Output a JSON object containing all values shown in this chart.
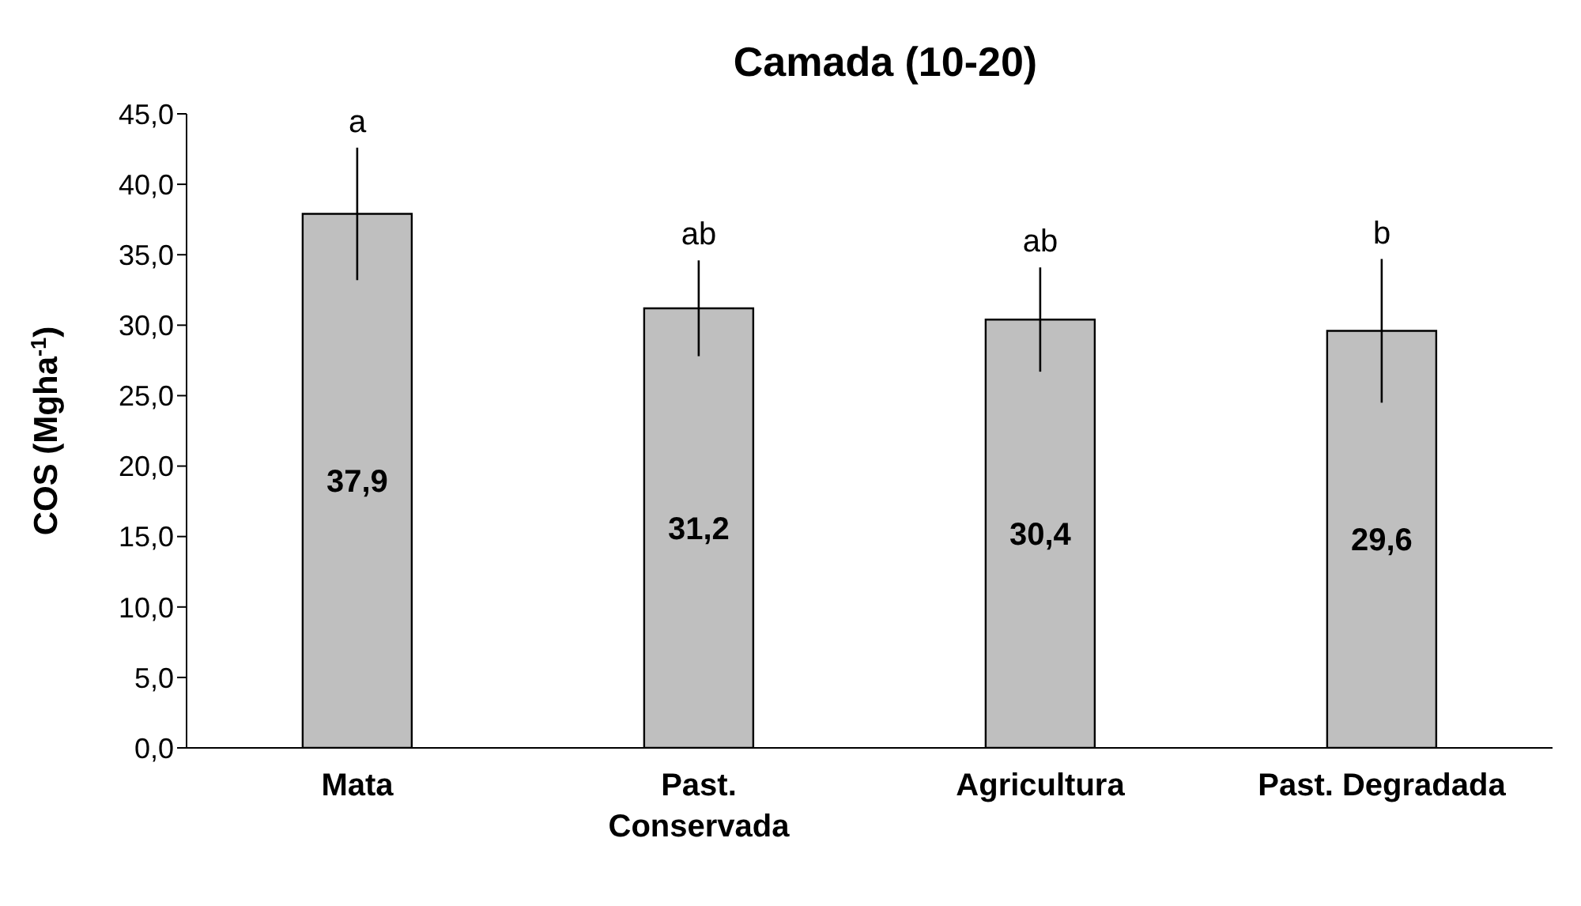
{
  "chart_data": {
    "type": "bar",
    "title": "Camada (10-20)",
    "ylabel": "COS (Mgha$^{-1}$)",
    "categories": [
      "Mata",
      "Past. Conservada",
      "Agricultura",
      "Past. Degradada"
    ],
    "values": [
      37.9,
      31.2,
      30.4,
      29.6
    ],
    "color": "#bfbfbf",
    "errors": [
      4.7,
      3.4,
      3.7,
      5.1
    ],
    "value_labels": [
      "37,9",
      "31,2",
      "30,4",
      "29,6"
    ],
    "annotations": [
      {
        "text": "a",
        "x": "Mata",
        "y": 42.6
      },
      {
        "text": "ab",
        "x": "Past. Conservada",
        "y": 34.6
      },
      {
        "text": "ab",
        "x": "Agricultura",
        "y": 34.1
      },
      {
        "text": "b",
        "x": "Past. Degradada",
        "y": 34.7
      }
    ],
    "ylim": [
      0,
      45
    ],
    "yticks": [
      {
        "value": 0,
        "label": "0,0"
      },
      {
        "value": 5,
        "label": "5,0"
      },
      {
        "value": 10,
        "label": "10,0"
      },
      {
        "value": 15,
        "label": "15,0"
      },
      {
        "value": 20,
        "label": "20,0"
      },
      {
        "value": 25,
        "label": "25,0"
      },
      {
        "value": 30,
        "label": "30,0"
      },
      {
        "value": 35,
        "label": "35,0"
      },
      {
        "value": 40,
        "label": "40,0"
      },
      {
        "value": 45,
        "label": "45,0"
      }
    ],
    "grid": false,
    "legend": false
  }
}
